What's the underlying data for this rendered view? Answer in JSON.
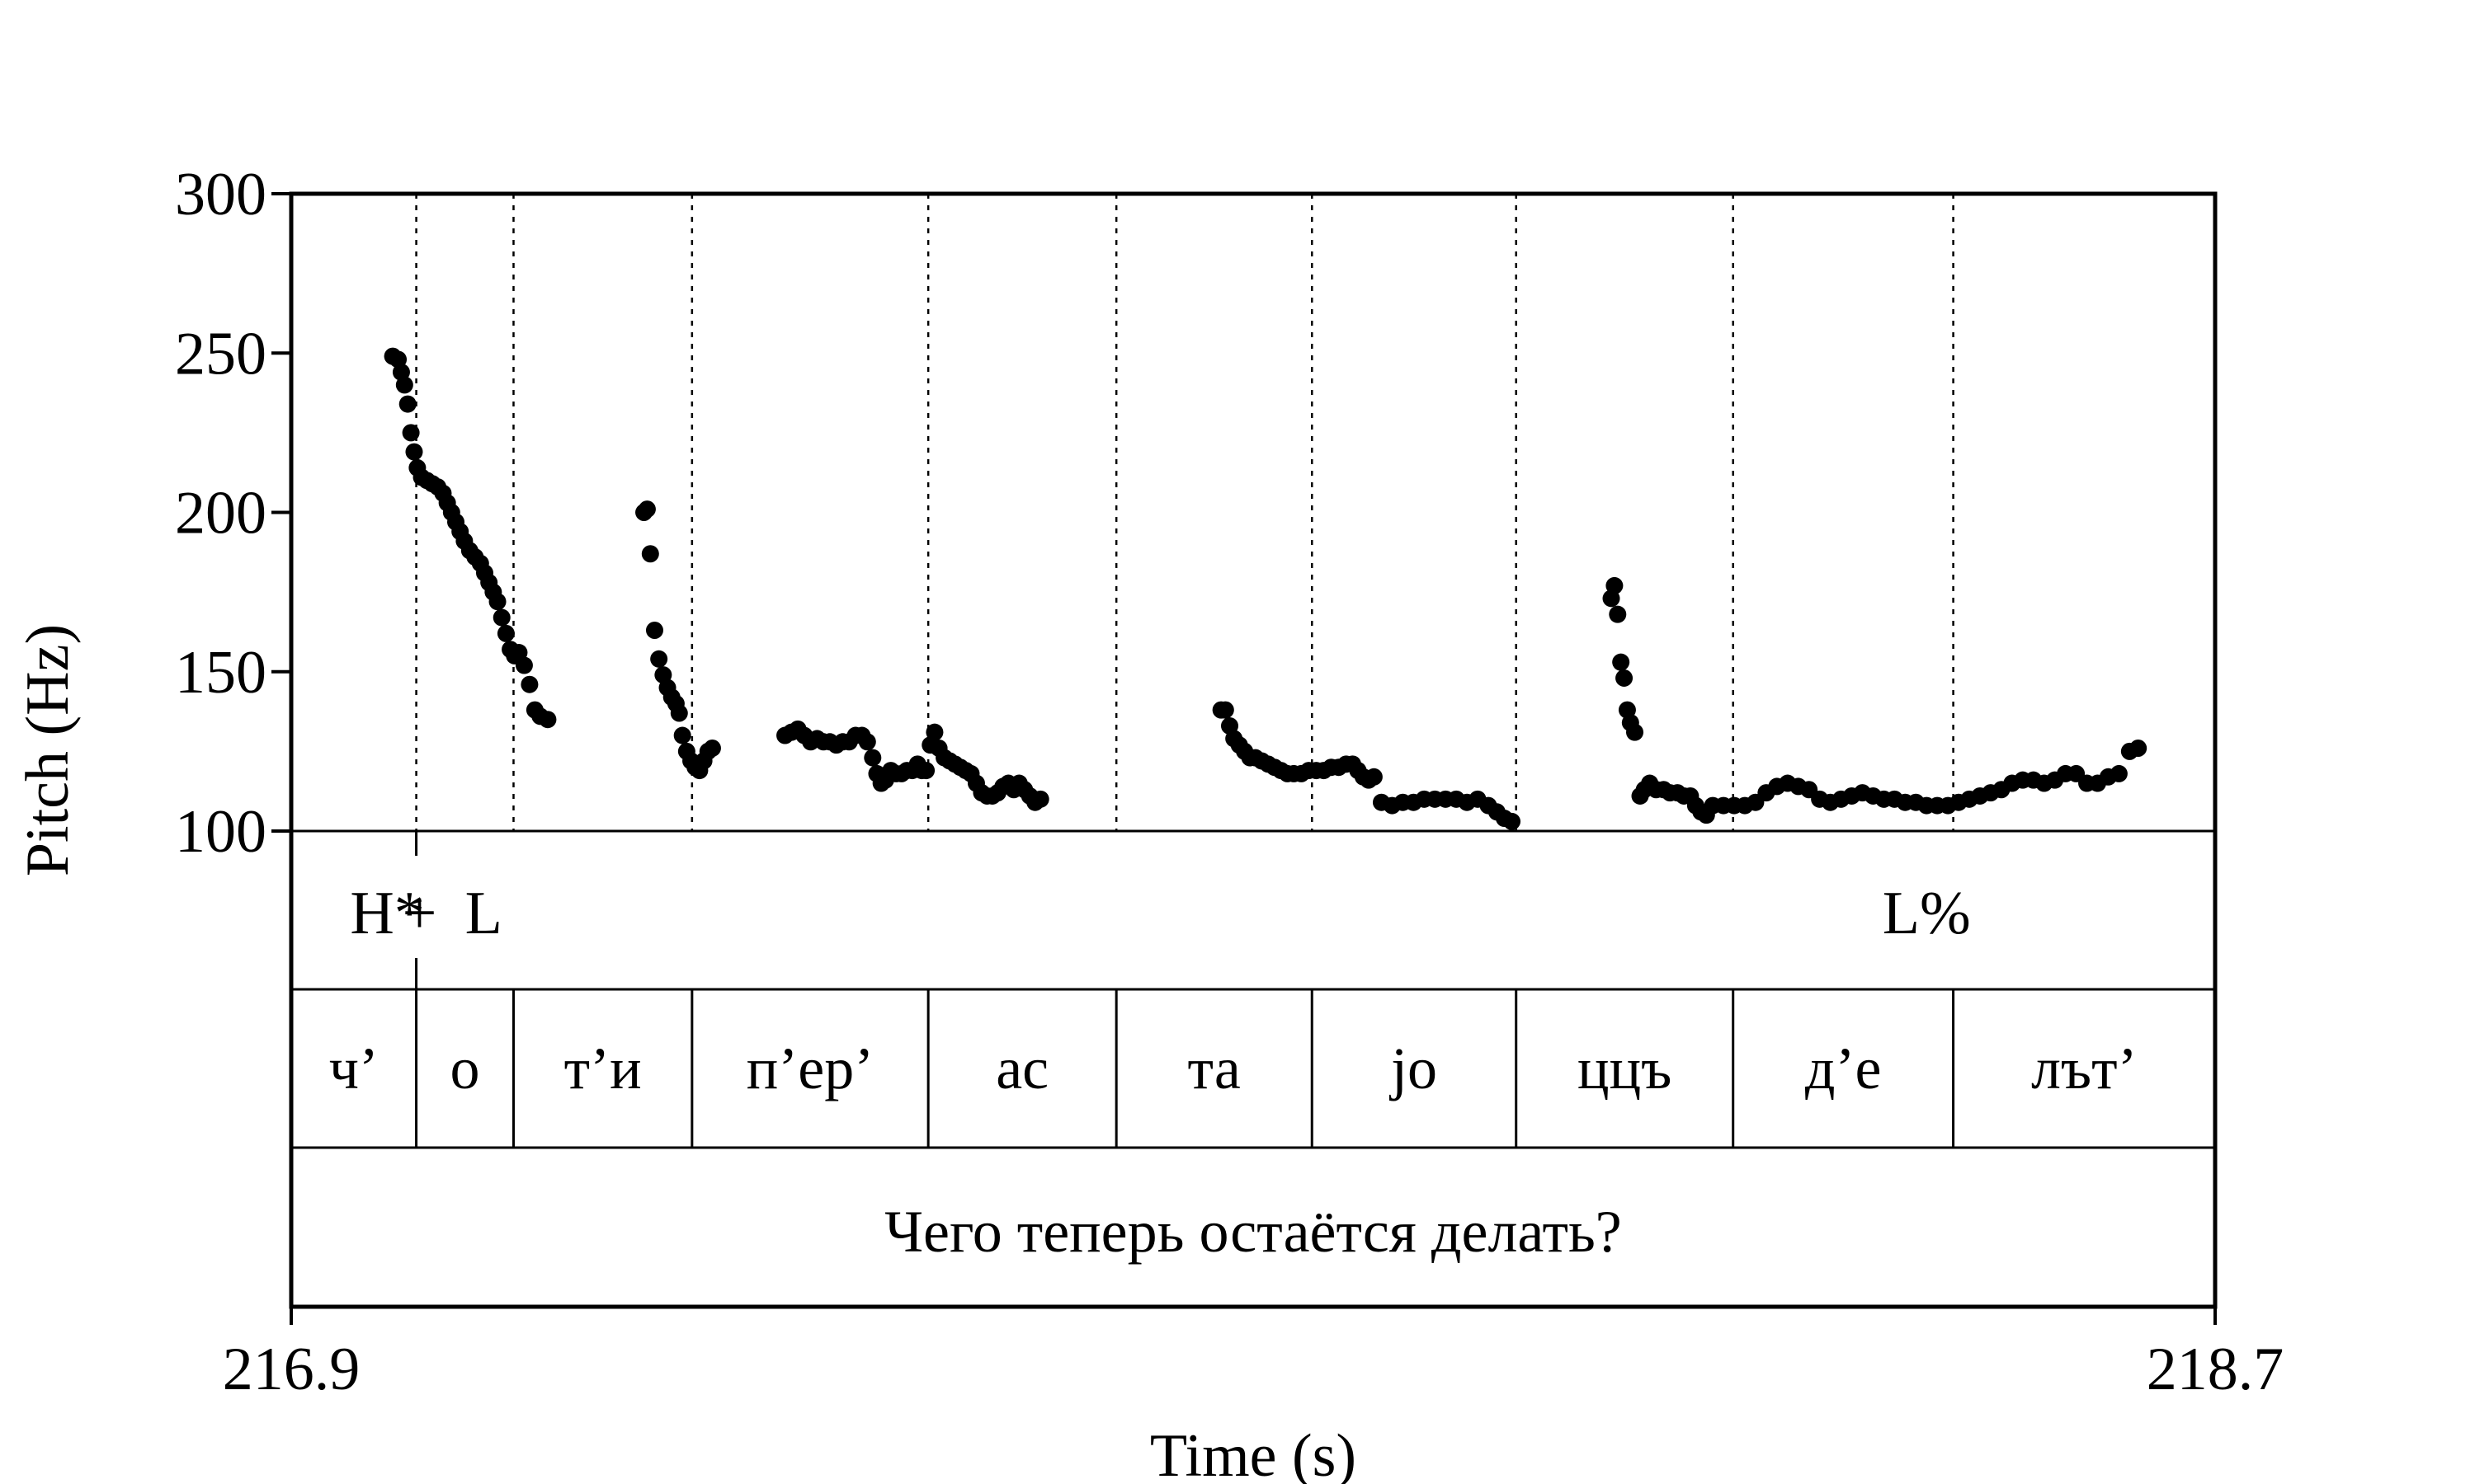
{
  "chart_data": {
    "type": "scatter",
    "xlabel": "Time (s)",
    "ylabel": "Pitch (Hz)",
    "xlim": [
      216.9,
      218.7
    ],
    "ylim": [
      100,
      300
    ],
    "x_ticks": [
      "216.9",
      "218.7"
    ],
    "y_ticks": [
      "300",
      "250",
      "200",
      "150",
      "100"
    ],
    "grid": false,
    "tone_tier": [
      {
        "text": "H*",
        "time": 216.99
      },
      {
        "text": "+",
        "time": 217.02
      },
      {
        "text": "L",
        "time": 217.08
      },
      {
        "text": "L%",
        "time": 218.43
      }
    ],
    "tone_boundaries": [
      217.017
    ],
    "segments": [
      {
        "label": "ч’",
        "start": 216.9,
        "end": 217.017
      },
      {
        "label": "о",
        "start": 217.017,
        "end": 217.108
      },
      {
        "label": "т’и",
        "start": 217.108,
        "end": 217.275
      },
      {
        "label": "п’ер’",
        "start": 217.275,
        "end": 217.496
      },
      {
        "label": "ас",
        "start": 217.496,
        "end": 217.672
      },
      {
        "label": "та",
        "start": 217.672,
        "end": 217.855
      },
      {
        "label": "jo",
        "start": 217.855,
        "end": 218.046
      },
      {
        "label": "ццъ",
        "start": 218.046,
        "end": 218.249
      },
      {
        "label": "д’е",
        "start": 218.249,
        "end": 218.455
      },
      {
        "label": "лът’",
        "start": 218.455,
        "end": 218.7
      }
    ],
    "sentence": "Чего теперь остаётся делать?",
    "pitch_contours": [
      [
        [
          216.995,
          249
        ],
        [
          217.0,
          248
        ],
        [
          217.003,
          244
        ],
        [
          217.006,
          240
        ],
        [
          217.009,
          234
        ],
        [
          217.012,
          225
        ],
        [
          217.015,
          219
        ],
        [
          217.018,
          214
        ],
        [
          217.022,
          211
        ],
        [
          217.027,
          210
        ],
        [
          217.032,
          209
        ],
        [
          217.037,
          208
        ],
        [
          217.042,
          206
        ],
        [
          217.046,
          203
        ],
        [
          217.05,
          200
        ],
        [
          217.054,
          197
        ],
        [
          217.058,
          194
        ],
        [
          217.062,
          191
        ],
        [
          217.067,
          188
        ],
        [
          217.072,
          186
        ],
        [
          217.077,
          184
        ],
        [
          217.081,
          181
        ],
        [
          217.085,
          178
        ],
        [
          217.089,
          175
        ],
        [
          217.093,
          172
        ],
        [
          217.097,
          167
        ],
        [
          217.101,
          162
        ],
        [
          217.105,
          157
        ],
        [
          217.109,
          155
        ],
        [
          217.113,
          156
        ],
        [
          217.118,
          152
        ],
        [
          217.123,
          146
        ],
        [
          217.128,
          138
        ],
        [
          217.133,
          136
        ],
        [
          217.14,
          135
        ]
      ],
      [
        [
          217.23,
          200
        ],
        [
          217.233,
          201
        ],
        [
          217.236,
          187
        ],
        [
          217.24,
          163
        ],
        [
          217.244,
          154
        ],
        [
          217.248,
          149
        ],
        [
          217.252,
          145
        ],
        [
          217.256,
          142
        ],
        [
          217.26,
          140
        ],
        [
          217.263,
          137
        ],
        [
          217.266,
          130
        ],
        [
          217.27,
          125
        ],
        [
          217.274,
          122
        ],
        [
          217.278,
          120
        ],
        [
          217.282,
          119
        ],
        [
          217.286,
          122
        ],
        [
          217.29,
          125
        ],
        [
          217.294,
          126
        ]
      ],
      [
        [
          217.362,
          130
        ],
        [
          217.368,
          131
        ],
        [
          217.374,
          132
        ],
        [
          217.38,
          130
        ],
        [
          217.386,
          128
        ],
        [
          217.392,
          129
        ],
        [
          217.398,
          128
        ],
        [
          217.404,
          128
        ],
        [
          217.41,
          127
        ],
        [
          217.416,
          128
        ],
        [
          217.422,
          128
        ],
        [
          217.428,
          130
        ],
        [
          217.434,
          130
        ],
        [
          217.439,
          128
        ],
        [
          217.444,
          123
        ],
        [
          217.448,
          118
        ],
        [
          217.452,
          115
        ],
        [
          217.456,
          116
        ],
        [
          217.461,
          119
        ],
        [
          217.466,
          118
        ],
        [
          217.471,
          118
        ],
        [
          217.476,
          119
        ],
        [
          217.481,
          119
        ],
        [
          217.486,
          121
        ],
        [
          217.49,
          119
        ],
        [
          217.494,
          119
        ],
        [
          217.498,
          127
        ],
        [
          217.502,
          131
        ],
        [
          217.506,
          126
        ],
        [
          217.511,
          123
        ],
        [
          217.516,
          122
        ],
        [
          217.521,
          121
        ],
        [
          217.526,
          120
        ],
        [
          217.531,
          119
        ],
        [
          217.536,
          118
        ],
        [
          217.541,
          115
        ],
        [
          217.546,
          112
        ],
        [
          217.551,
          111
        ],
        [
          217.556,
          111
        ],
        [
          217.561,
          112
        ],
        [
          217.566,
          114
        ],
        [
          217.571,
          115
        ],
        [
          217.576,
          113
        ],
        [
          217.581,
          115
        ],
        [
          217.586,
          113
        ],
        [
          217.591,
          111
        ],
        [
          217.596,
          109
        ],
        [
          217.601,
          110
        ]
      ],
      [
        [
          217.77,
          138
        ],
        [
          217.774,
          138
        ],
        [
          217.778,
          133
        ],
        [
          217.782,
          129
        ],
        [
          217.787,
          127
        ],
        [
          217.792,
          125
        ],
        [
          217.797,
          123
        ],
        [
          217.802,
          123
        ],
        [
          217.808,
          122
        ],
        [
          217.814,
          121
        ],
        [
          217.82,
          120
        ],
        [
          217.826,
          119
        ],
        [
          217.832,
          118
        ],
        [
          217.838,
          118
        ],
        [
          217.845,
          118
        ],
        [
          217.852,
          119
        ],
        [
          217.859,
          119
        ],
        [
          217.866,
          119
        ],
        [
          217.873,
          120
        ],
        [
          217.88,
          120
        ],
        [
          217.887,
          121
        ],
        [
          217.893,
          121
        ],
        [
          217.898,
          119
        ],
        [
          217.903,
          117
        ],
        [
          217.908,
          116
        ],
        [
          217.913,
          117
        ],
        [
          217.92,
          109
        ],
        [
          217.93,
          108
        ],
        [
          217.94,
          109
        ],
        [
          217.95,
          109
        ],
        [
          217.96,
          110
        ],
        [
          217.97,
          110
        ],
        [
          217.98,
          110
        ],
        [
          217.99,
          110
        ],
        [
          218.0,
          109
        ],
        [
          218.01,
          110
        ],
        [
          218.02,
          108
        ],
        [
          218.028,
          106
        ],
        [
          218.035,
          104
        ],
        [
          218.042,
          103
        ]
      ],
      [
        [
          218.135,
          173
        ],
        [
          218.138,
          177
        ],
        [
          218.141,
          168
        ],
        [
          218.144,
          153
        ],
        [
          218.147,
          148
        ],
        [
          218.15,
          138
        ],
        [
          218.153,
          134
        ],
        [
          218.157,
          131
        ],
        [
          218.162,
          111
        ],
        [
          218.166,
          113
        ],
        [
          218.171,
          115
        ],
        [
          218.177,
          113
        ],
        [
          218.184,
          113
        ],
        [
          218.19,
          112
        ],
        [
          218.197,
          112
        ],
        [
          218.203,
          111
        ],
        [
          218.209,
          111
        ],
        [
          218.214,
          108
        ],
        [
          218.219,
          106
        ],
        [
          218.224,
          105
        ],
        [
          218.23,
          108
        ],
        [
          218.24,
          108
        ],
        [
          218.25,
          108
        ],
        [
          218.26,
          108
        ],
        [
          218.27,
          109
        ],
        [
          218.28,
          112
        ],
        [
          218.29,
          114
        ],
        [
          218.3,
          115
        ],
        [
          218.31,
          114
        ],
        [
          218.32,
          113
        ],
        [
          218.33,
          110
        ],
        [
          218.34,
          109
        ],
        [
          218.35,
          110
        ],
        [
          218.36,
          111
        ],
        [
          218.37,
          112
        ],
        [
          218.38,
          111
        ],
        [
          218.39,
          110
        ],
        [
          218.4,
          110
        ],
        [
          218.41,
          109
        ],
        [
          218.42,
          109
        ],
        [
          218.43,
          108
        ],
        [
          218.44,
          108
        ],
        [
          218.45,
          108
        ],
        [
          218.46,
          109
        ],
        [
          218.47,
          110
        ],
        [
          218.48,
          111
        ],
        [
          218.49,
          112
        ],
        [
          218.5,
          113
        ],
        [
          218.51,
          115
        ],
        [
          218.52,
          116
        ],
        [
          218.53,
          116
        ],
        [
          218.54,
          115
        ],
        [
          218.55,
          116
        ],
        [
          218.56,
          118
        ],
        [
          218.57,
          118
        ],
        [
          218.58,
          115
        ],
        [
          218.59,
          115
        ],
        [
          218.6,
          117
        ],
        [
          218.61,
          118
        ],
        [
          218.62,
          125
        ],
        [
          218.628,
          126
        ]
      ]
    ]
  }
}
